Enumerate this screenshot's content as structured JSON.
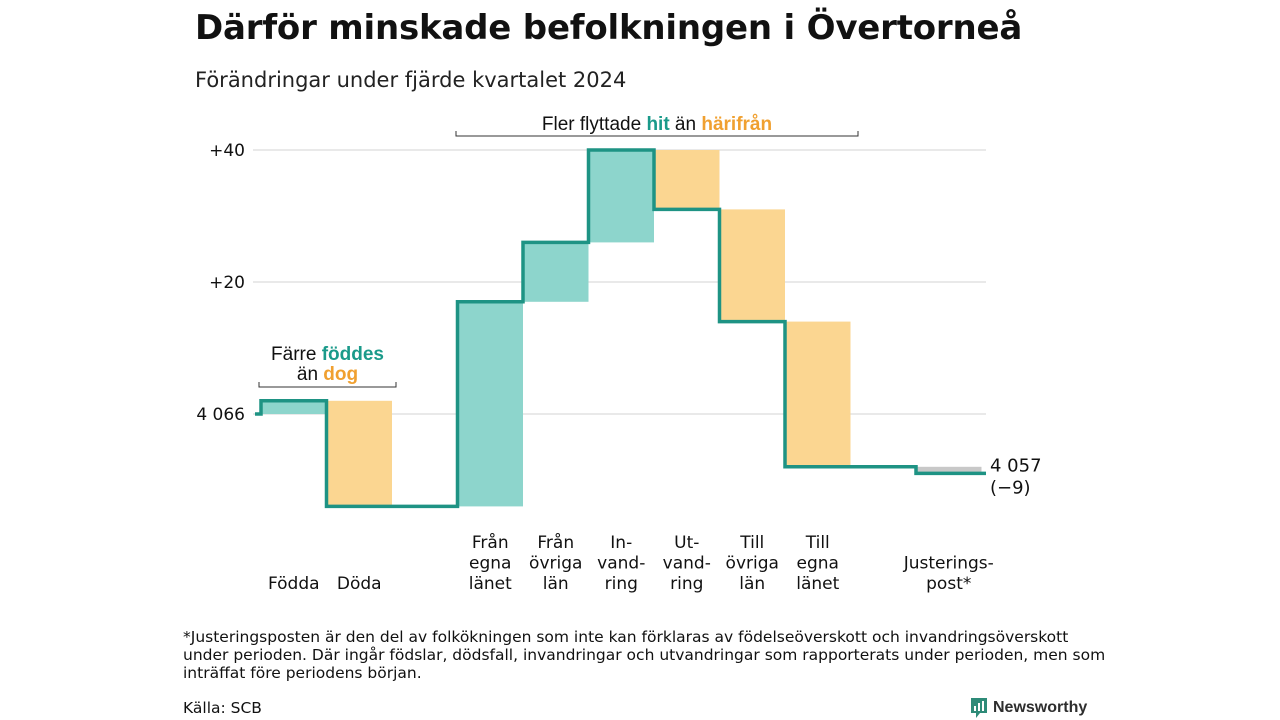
{
  "title": "Därför minskade befolkningen i Övertorneå",
  "subtitle": "Förändringar under fjärde kvartalet 2024",
  "colors": {
    "in": "#8dd5cc",
    "out": "#fbd691",
    "line": "#1e9384",
    "adjust": "#c8c8c8",
    "in_text": "#1a9a8a",
    "out_text": "#f0a030"
  },
  "chart_data": {
    "type": "waterfall",
    "start_value": 4066,
    "start_label": "4 066",
    "end_value": 4057,
    "end_label": "4 057",
    "end_change_label": "(−9)",
    "y_axis": {
      "ticks": [
        "+20",
        "+40"
      ],
      "tick_values": [
        20,
        40
      ],
      "range": [
        -15,
        45
      ]
    },
    "steps": [
      {
        "id": "fodda",
        "label": [
          "Födda"
        ],
        "value": 2,
        "kind": "in"
      },
      {
        "id": "doda",
        "label": [
          "Döda"
        ],
        "value": -16,
        "kind": "out"
      },
      {
        "id": "gap",
        "label": [],
        "value": 0,
        "kind": "none"
      },
      {
        "id": "fran-egna",
        "label": [
          "Från",
          "egna",
          "länet"
        ],
        "value": 31,
        "kind": "in"
      },
      {
        "id": "fran-ovriga",
        "label": [
          "Från",
          "övriga",
          "län"
        ],
        "value": 9,
        "kind": "in"
      },
      {
        "id": "invandring",
        "label": [
          "In-",
          "vand-",
          "ring"
        ],
        "value": 14,
        "kind": "in"
      },
      {
        "id": "utvandring",
        "label": [
          "Ut-",
          "vand-",
          "ring"
        ],
        "value": -9,
        "kind": "out"
      },
      {
        "id": "till-ovriga",
        "label": [
          "Till",
          "övriga",
          "län"
        ],
        "value": -17,
        "kind": "out"
      },
      {
        "id": "till-egna",
        "label": [
          "Till",
          "egna",
          "länet"
        ],
        "value": -22,
        "kind": "out"
      },
      {
        "id": "gap2",
        "label": [],
        "value": 0,
        "kind": "none"
      },
      {
        "id": "justering",
        "label": [
          "Justerings-",
          "post*"
        ],
        "value": -1,
        "kind": "adjust"
      }
    ],
    "annotations": [
      {
        "id": "births",
        "parts": [
          {
            "text": "Färre ",
            "style": "plain"
          },
          {
            "text": "föddes",
            "style": "in"
          },
          {
            "text": "än ",
            "style": "plain",
            "newline": true
          },
          {
            "text": "dog",
            "style": "out"
          }
        ]
      },
      {
        "id": "migration",
        "parts": [
          {
            "text": "Fler flyttade ",
            "style": "plain"
          },
          {
            "text": "hit",
            "style": "in"
          },
          {
            "text": " än ",
            "style": "plain"
          },
          {
            "text": "härifrån",
            "style": "out"
          }
        ]
      }
    ]
  },
  "footnote": "*Justeringsposten är den del av folkökningen som inte kan förklaras av födelseöverskott och invandringsöverskott under perioden. Där ingår födslar, dödsfall, invandringar och utvandringar som rapporterats under perioden, men som inträffat före periodens början.",
  "source": "Källa: SCB",
  "brand": {
    "name": "Newsworthy",
    "icon": "newsworthy-logo-icon"
  }
}
